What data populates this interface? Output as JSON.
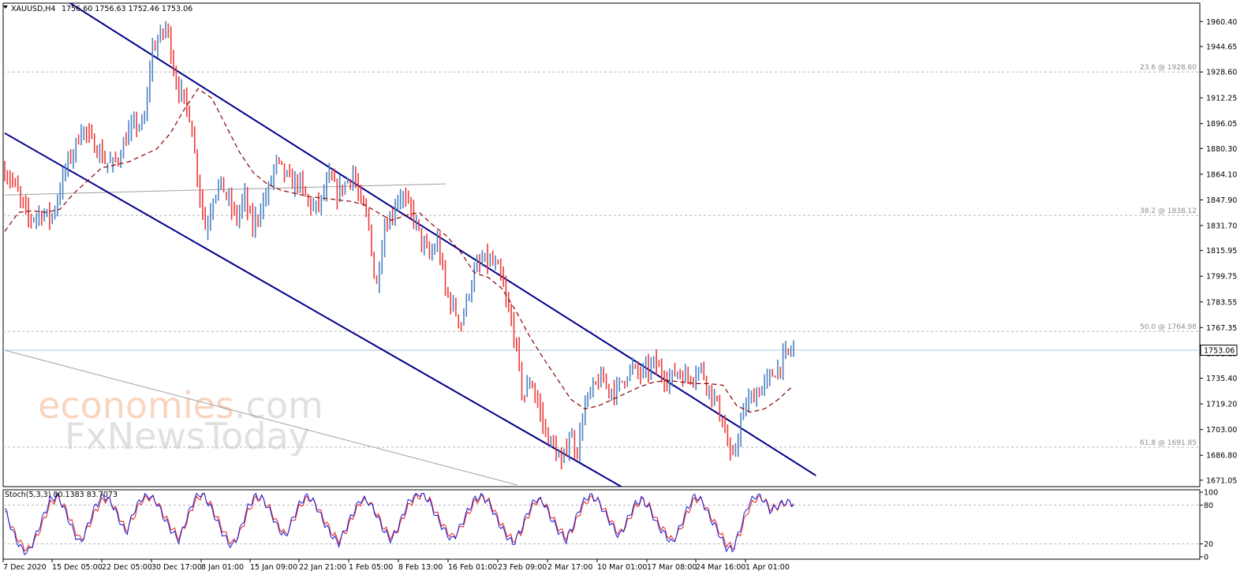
{
  "chart_data": {
    "type": "candlestick",
    "symbol_header": "XAUUSD,H4",
    "ohlc": "1756.60 1756.63 1752.46 1753.06",
    "current_price": 1753.06,
    "current_price_label": "1753.06",
    "ylim": [
      1667.0,
      1972.0
    ],
    "price_ticks": [
      "1960.40",
      "1944.65",
      "1928.60",
      "1912.25",
      "1896.05",
      "1880.30",
      "1864.10",
      "1847.90",
      "1831.70",
      "1815.95",
      "1799.75",
      "1783.55",
      "1767.35",
      "1751.15",
      "1735.40",
      "1719.20",
      "1703.00",
      "1686.80",
      "1671.05"
    ],
    "time_labels": [
      "7 Dec 2020",
      "15 Dec 05:00",
      "22 Dec 05:00",
      "30 Dec 17:00",
      "8 Jan 01:00",
      "15 Jan 09:00",
      "22 Jan 21:00",
      "1 Feb 05:00",
      "8 Feb 13:00",
      "16 Feb 01:00",
      "23 Feb 09:00",
      "2 Mar 17:00",
      "10 Mar 01:00",
      "17 Mar 08:00",
      "24 Mar 16:00",
      "1 Apr 01:00"
    ],
    "fib_levels": [
      {
        "label": "23.6 @ 1928.60",
        "price": 1928.6
      },
      {
        "label": "38.2 @ 1838.12",
        "price": 1838.12
      },
      {
        "label": "50.0 @ 1764.98",
        "price": 1764.98
      },
      {
        "label": "61.8 @ 1691.85",
        "price": 1691.85
      }
    ],
    "close_path": [
      1866,
      1860,
      1848,
      1836,
      1838,
      1840,
      1836,
      1852,
      1870,
      1880,
      1894,
      1886,
      1880,
      1872,
      1870,
      1878,
      1890,
      1896,
      1894,
      1942,
      1950,
      1958,
      1925,
      1912,
      1900,
      1860,
      1828,
      1852,
      1858,
      1846,
      1836,
      1850,
      1830,
      1842,
      1852,
      1872,
      1866,
      1858,
      1860,
      1848,
      1842,
      1848,
      1862,
      1852,
      1858,
      1865,
      1846,
      1835,
      1790,
      1830,
      1838,
      1852,
      1845,
      1836,
      1820,
      1812,
      1822,
      1790,
      1780,
      1770,
      1790,
      1805,
      1810,
      1808,
      1802,
      1780,
      1760,
      1722,
      1735,
      1718,
      1700,
      1692,
      1680,
      1700,
      1690,
      1718,
      1728,
      1735,
      1730,
      1727,
      1735,
      1742,
      1738,
      1740,
      1745,
      1738,
      1735,
      1740,
      1736,
      1738,
      1742,
      1730,
      1720,
      1705,
      1680,
      1705,
      1720,
      1725,
      1730,
      1736,
      1742,
      1750,
      1754
    ],
    "ma_path": [
      1828,
      1840,
      1841,
      1840,
      1842,
      1852,
      1860,
      1868,
      1870,
      1872,
      1876,
      1880,
      1890,
      1905,
      1918,
      1912,
      1895,
      1878,
      1865,
      1858,
      1854,
      1852,
      1850,
      1849,
      1848,
      1847,
      1845,
      1840,
      1835,
      1838,
      1840,
      1832,
      1825,
      1815,
      1802,
      1799,
      1792,
      1778,
      1762,
      1748,
      1735,
      1722,
      1716,
      1718,
      1722,
      1726,
      1730,
      1733,
      1734,
      1733,
      1732,
      1732,
      1731,
      1718,
      1714,
      1716,
      1722,
      1730
    ],
    "channel_upper": {
      "p1": [
        "2020-12-14",
        1980
      ],
      "p2": [
        "2021-04-11",
        1674
      ]
    },
    "channel_lower": {
      "p1": [
        "2020-12-07",
        1890
      ],
      "p2": [
        "2021-03-12",
        1667
      ]
    },
    "grey_trend_upper": {
      "p1": [
        "2020-12-07",
        1851
      ],
      "p2": [
        "2021-02-13",
        1858
      ]
    },
    "grey_trend_lower": {
      "p1": [
        "2020-12-07",
        1753
      ],
      "p2": [
        "2021-02-24",
        1668
      ]
    },
    "stochastic": {
      "label": "Stoch(5,3,3) 80.1383 83.7073",
      "ticks": [
        "100",
        "80",
        "20",
        "0"
      ],
      "levels": [
        80,
        20
      ],
      "k_path": [
        75,
        40,
        15,
        5,
        30,
        60,
        88,
        95,
        70,
        40,
        20,
        50,
        80,
        95,
        85,
        60,
        35,
        70,
        90,
        95,
        85,
        60,
        40,
        25,
        60,
        90,
        100,
        80,
        55,
        30,
        15,
        40,
        75,
        95,
        90,
        70,
        45,
        30,
        60,
        85,
        95,
        80,
        55,
        35,
        20,
        45,
        70,
        90,
        85,
        65,
        40,
        25,
        50,
        80,
        95,
        100,
        85,
        60,
        40,
        25,
        45,
        70,
        90,
        95,
        80,
        55,
        35,
        20,
        40,
        70,
        90,
        85,
        60,
        40,
        25,
        50,
        80,
        95,
        90,
        70,
        50,
        30,
        55,
        80,
        90,
        75,
        50,
        35,
        20,
        45,
        75,
        95,
        85,
        60,
        40,
        15,
        10,
        45,
        80,
        95,
        90,
        70,
        80,
        85,
        82
      ],
      "d_path": [
        70,
        45,
        22,
        10,
        25,
        52,
        82,
        92,
        75,
        48,
        25,
        45,
        72,
        90,
        86,
        65,
        40,
        62,
        86,
        92,
        86,
        65,
        45,
        30,
        55,
        84,
        96,
        84,
        60,
        36,
        20,
        36,
        68,
        90,
        90,
        74,
        50,
        34,
        55,
        80,
        92,
        82,
        60,
        40,
        25,
        40,
        65,
        86,
        86,
        68,
        45,
        30,
        45,
        74,
        90,
        96,
        88,
        65,
        45,
        30,
        42,
        64,
        86,
        92,
        84,
        60,
        40,
        25,
        36,
        64,
        86,
        86,
        65,
        45,
        30,
        45,
        74,
        90,
        90,
        74,
        54,
        35,
        50,
        75,
        88,
        78,
        55,
        40,
        25,
        40,
        68,
        90,
        86,
        65,
        45,
        22,
        14,
        38,
        72,
        90,
        90,
        74,
        78,
        84,
        84
      ]
    },
    "watermark": {
      "line1": "economies.com",
      "line2": "FxNewsToday"
    },
    "colors": {
      "bull": "#4c82c4",
      "bear": "#ef3b3b",
      "channel": "#00008b",
      "ma": "#8b0000",
      "grid": "#b4b4b4",
      "stoch_k": "#1a1ad6",
      "stoch_d": "#e0241f"
    }
  }
}
